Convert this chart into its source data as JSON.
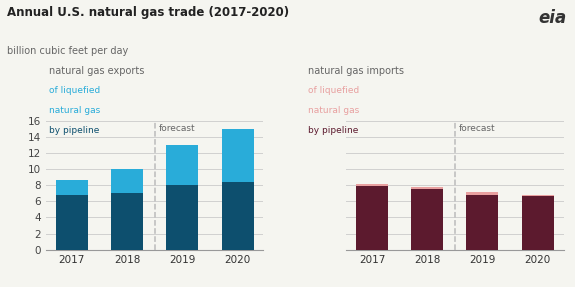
{
  "title": "Annual U.S. natural gas trade (2017-2020)",
  "subtitle": "billion cubic feet per day",
  "years": [
    "2017",
    "2018",
    "2019",
    "2020"
  ],
  "exports": {
    "pipeline": [
      6.8,
      7.0,
      8.0,
      8.4
    ],
    "lng": [
      1.8,
      3.0,
      5.0,
      6.6
    ]
  },
  "imports": {
    "pipeline": [
      7.9,
      7.5,
      6.8,
      6.7
    ],
    "lng": [
      0.3,
      0.3,
      0.3,
      0.1
    ]
  },
  "ylim": [
    0,
    16
  ],
  "yticks": [
    0,
    2,
    4,
    6,
    8,
    10,
    12,
    14,
    16
  ],
  "export_pipeline_color": "#0d4f6e",
  "export_lng_color": "#29acd9",
  "import_pipeline_color": "#5c1a2e",
  "import_lng_color": "#e8a0a0",
  "forecast_line_color": "#bbbbbb",
  "background_color": "#f5f5f0",
  "grid_color": "#d0d0d0",
  "text_color": "#666666",
  "title_color": "#222222"
}
